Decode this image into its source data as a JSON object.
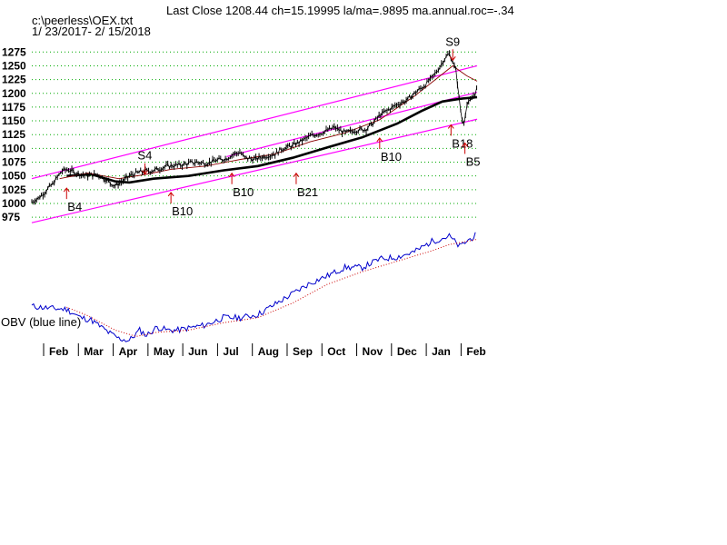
{
  "chart_data": {
    "type": "line",
    "title": "Last Close 1208.44 ch=15.19995  la/ma=.9895 ma.annual.roc=-.34",
    "file": "c:\\peerless\\OEX.txt",
    "date_range": "1/ 23/2017- 2/ 15/2018",
    "ylim": [
      962,
      1292
    ],
    "yticks": [
      975,
      1000,
      1025,
      1050,
      1075,
      1100,
      1125,
      1150,
      1175,
      1200,
      1225,
      1250,
      1275
    ],
    "months": [
      "Feb",
      "Mar",
      "Apr",
      "May",
      "Jun",
      "Jul",
      "Aug",
      "Sep",
      "Oct",
      "Nov",
      "Dec",
      "Jan",
      "Feb"
    ],
    "obv_label": "OBV (blue line)",
    "colors": {
      "price": "#000000",
      "ma": "#000000",
      "channel": "#ff00ff",
      "obv": "#0000cc",
      "obv_ma": "#cc0000",
      "signal": "#cc0000",
      "grid": "#00aa00"
    },
    "price_points": [
      [
        0,
        1003
      ],
      [
        0.2,
        1010
      ],
      [
        0.6,
        1035
      ],
      [
        0.85,
        1058
      ],
      [
        1.0,
        1062
      ],
      [
        1.3,
        1055
      ],
      [
        1.6,
        1050
      ],
      [
        1.9,
        1053
      ],
      [
        2.2,
        1040
      ],
      [
        2.4,
        1032
      ],
      [
        2.6,
        1040
      ],
      [
        2.8,
        1050
      ],
      [
        3.0,
        1055
      ],
      [
        3.2,
        1058
      ],
      [
        3.5,
        1060
      ],
      [
        3.9,
        1068
      ],
      [
        4.3,
        1070
      ],
      [
        4.7,
        1075
      ],
      [
        5.0,
        1073
      ],
      [
        5.3,
        1078
      ],
      [
        5.6,
        1082
      ],
      [
        5.8,
        1090
      ],
      [
        6.0,
        1093
      ],
      [
        6.1,
        1083
      ],
      [
        6.4,
        1080
      ],
      [
        6.6,
        1084
      ],
      [
        7.0,
        1090
      ],
      [
        7.2,
        1100
      ],
      [
        7.5,
        1105
      ],
      [
        7.8,
        1115
      ],
      [
        8.0,
        1122
      ],
      [
        8.4,
        1130
      ],
      [
        8.7,
        1138
      ],
      [
        9.0,
        1128
      ],
      [
        9.3,
        1133
      ],
      [
        9.6,
        1135
      ],
      [
        9.8,
        1145
      ],
      [
        10.0,
        1160
      ],
      [
        10.2,
        1168
      ],
      [
        10.5,
        1180
      ],
      [
        10.8,
        1188
      ],
      [
        11.0,
        1200
      ],
      [
        11.3,
        1215
      ],
      [
        11.5,
        1228
      ],
      [
        11.7,
        1245
      ],
      [
        11.85,
        1262
      ],
      [
        12.0,
        1272
      ],
      [
        12.1,
        1258
      ],
      [
        12.2,
        1240
      ],
      [
        12.3,
        1180
      ],
      [
        12.4,
        1140
      ],
      [
        12.5,
        1178
      ],
      [
        12.65,
        1190
      ],
      [
        12.8,
        1208.44
      ]
    ],
    "ma_points": [
      [
        1.0,
        1050
      ],
      [
        1.7,
        1053
      ],
      [
        2.4,
        1040
      ],
      [
        2.8,
        1038
      ],
      [
        3.5,
        1045
      ],
      [
        4.5,
        1050
      ],
      [
        5.5,
        1060
      ],
      [
        6.5,
        1068
      ],
      [
        7.5,
        1083
      ],
      [
        8.5,
        1102
      ],
      [
        9.5,
        1120
      ],
      [
        10.5,
        1145
      ],
      [
        11.2,
        1168
      ],
      [
        11.8,
        1185
      ],
      [
        12.3,
        1190
      ],
      [
        12.8,
        1193
      ]
    ],
    "ma21_points": [
      [
        0.8,
        1045
      ],
      [
        1.6,
        1055
      ],
      [
        2.5,
        1045
      ],
      [
        3.2,
        1052
      ],
      [
        4.0,
        1062
      ],
      [
        5.0,
        1068
      ],
      [
        6.0,
        1080
      ],
      [
        7.0,
        1090
      ],
      [
        8.0,
        1112
      ],
      [
        9.0,
        1128
      ],
      [
        10.0,
        1152
      ],
      [
        11.0,
        1195
      ],
      [
        11.7,
        1230
      ],
      [
        12.1,
        1250
      ],
      [
        12.5,
        1232
      ],
      [
        12.8,
        1222
      ]
    ],
    "channel_lines": [
      {
        "name": "upper",
        "from": [
          0,
          1045
        ],
        "to": [
          12.8,
          1250
        ]
      },
      {
        "name": "middle",
        "from": [
          5.6,
          1085
        ],
        "to": [
          12.8,
          1202
        ]
      },
      {
        "name": "lower",
        "from": [
          0,
          965
        ],
        "to": [
          12.8,
          1153
        ]
      }
    ],
    "obv_points": [
      [
        0,
        0.33
      ],
      [
        0.5,
        0.31
      ],
      [
        1.0,
        0.3
      ],
      [
        1.4,
        0.22
      ],
      [
        1.7,
        0.2
      ],
      [
        2.2,
        0.08
      ],
      [
        2.5,
        0.02
      ],
      [
        2.8,
        0.0
      ],
      [
        3.1,
        0.1
      ],
      [
        3.3,
        0.05
      ],
      [
        3.6,
        0.13
      ],
      [
        3.9,
        0.1
      ],
      [
        4.2,
        0.1
      ],
      [
        4.5,
        0.12
      ],
      [
        5.0,
        0.15
      ],
      [
        5.5,
        0.22
      ],
      [
        6.0,
        0.22
      ],
      [
        6.5,
        0.25
      ],
      [
        7.0,
        0.35
      ],
      [
        7.5,
        0.45
      ],
      [
        8.0,
        0.55
      ],
      [
        8.5,
        0.62
      ],
      [
        9.0,
        0.7
      ],
      [
        9.5,
        0.7
      ],
      [
        10.0,
        0.78
      ],
      [
        10.5,
        0.8
      ],
      [
        11.0,
        0.85
      ],
      [
        11.5,
        0.95
      ],
      [
        12.0,
        1.0
      ],
      [
        12.3,
        0.9
      ],
      [
        12.5,
        0.95
      ],
      [
        12.8,
        1.02
      ]
    ],
    "obv_ma_points": [
      [
        1.0,
        0.32
      ],
      [
        1.6,
        0.24
      ],
      [
        2.4,
        0.1
      ],
      [
        3.0,
        0.04
      ],
      [
        3.6,
        0.08
      ],
      [
        4.5,
        0.1
      ],
      [
        5.5,
        0.17
      ],
      [
        6.5,
        0.22
      ],
      [
        7.5,
        0.36
      ],
      [
        8.5,
        0.54
      ],
      [
        9.5,
        0.66
      ],
      [
        10.5,
        0.76
      ],
      [
        11.5,
        0.86
      ],
      [
        12.0,
        0.92
      ],
      [
        12.5,
        0.95
      ],
      [
        12.8,
        0.97
      ]
    ],
    "signals": [
      {
        "label": "B4",
        "x": 1.0,
        "y": 1008,
        "kind": "buy"
      },
      {
        "label": "S4",
        "x": 3.25,
        "y": 1073,
        "kind": "sell"
      },
      {
        "label": "B10",
        "x": 4.0,
        "y": 1000,
        "kind": "buy"
      },
      {
        "label": "B10",
        "x": 5.75,
        "y": 1035,
        "kind": "buy"
      },
      {
        "label": "B21",
        "x": 7.6,
        "y": 1035,
        "kind": "buy"
      },
      {
        "label": "B10",
        "x": 10.0,
        "y": 1099,
        "kind": "buy"
      },
      {
        "label": "S9",
        "x": 12.1,
        "y": 1280,
        "kind": "sell"
      },
      {
        "label": "B18",
        "x": 12.05,
        "y": 1123,
        "kind": "buy"
      },
      {
        "label": "B5",
        "x": 12.45,
        "y": 1090,
        "kind": "buy"
      }
    ]
  }
}
